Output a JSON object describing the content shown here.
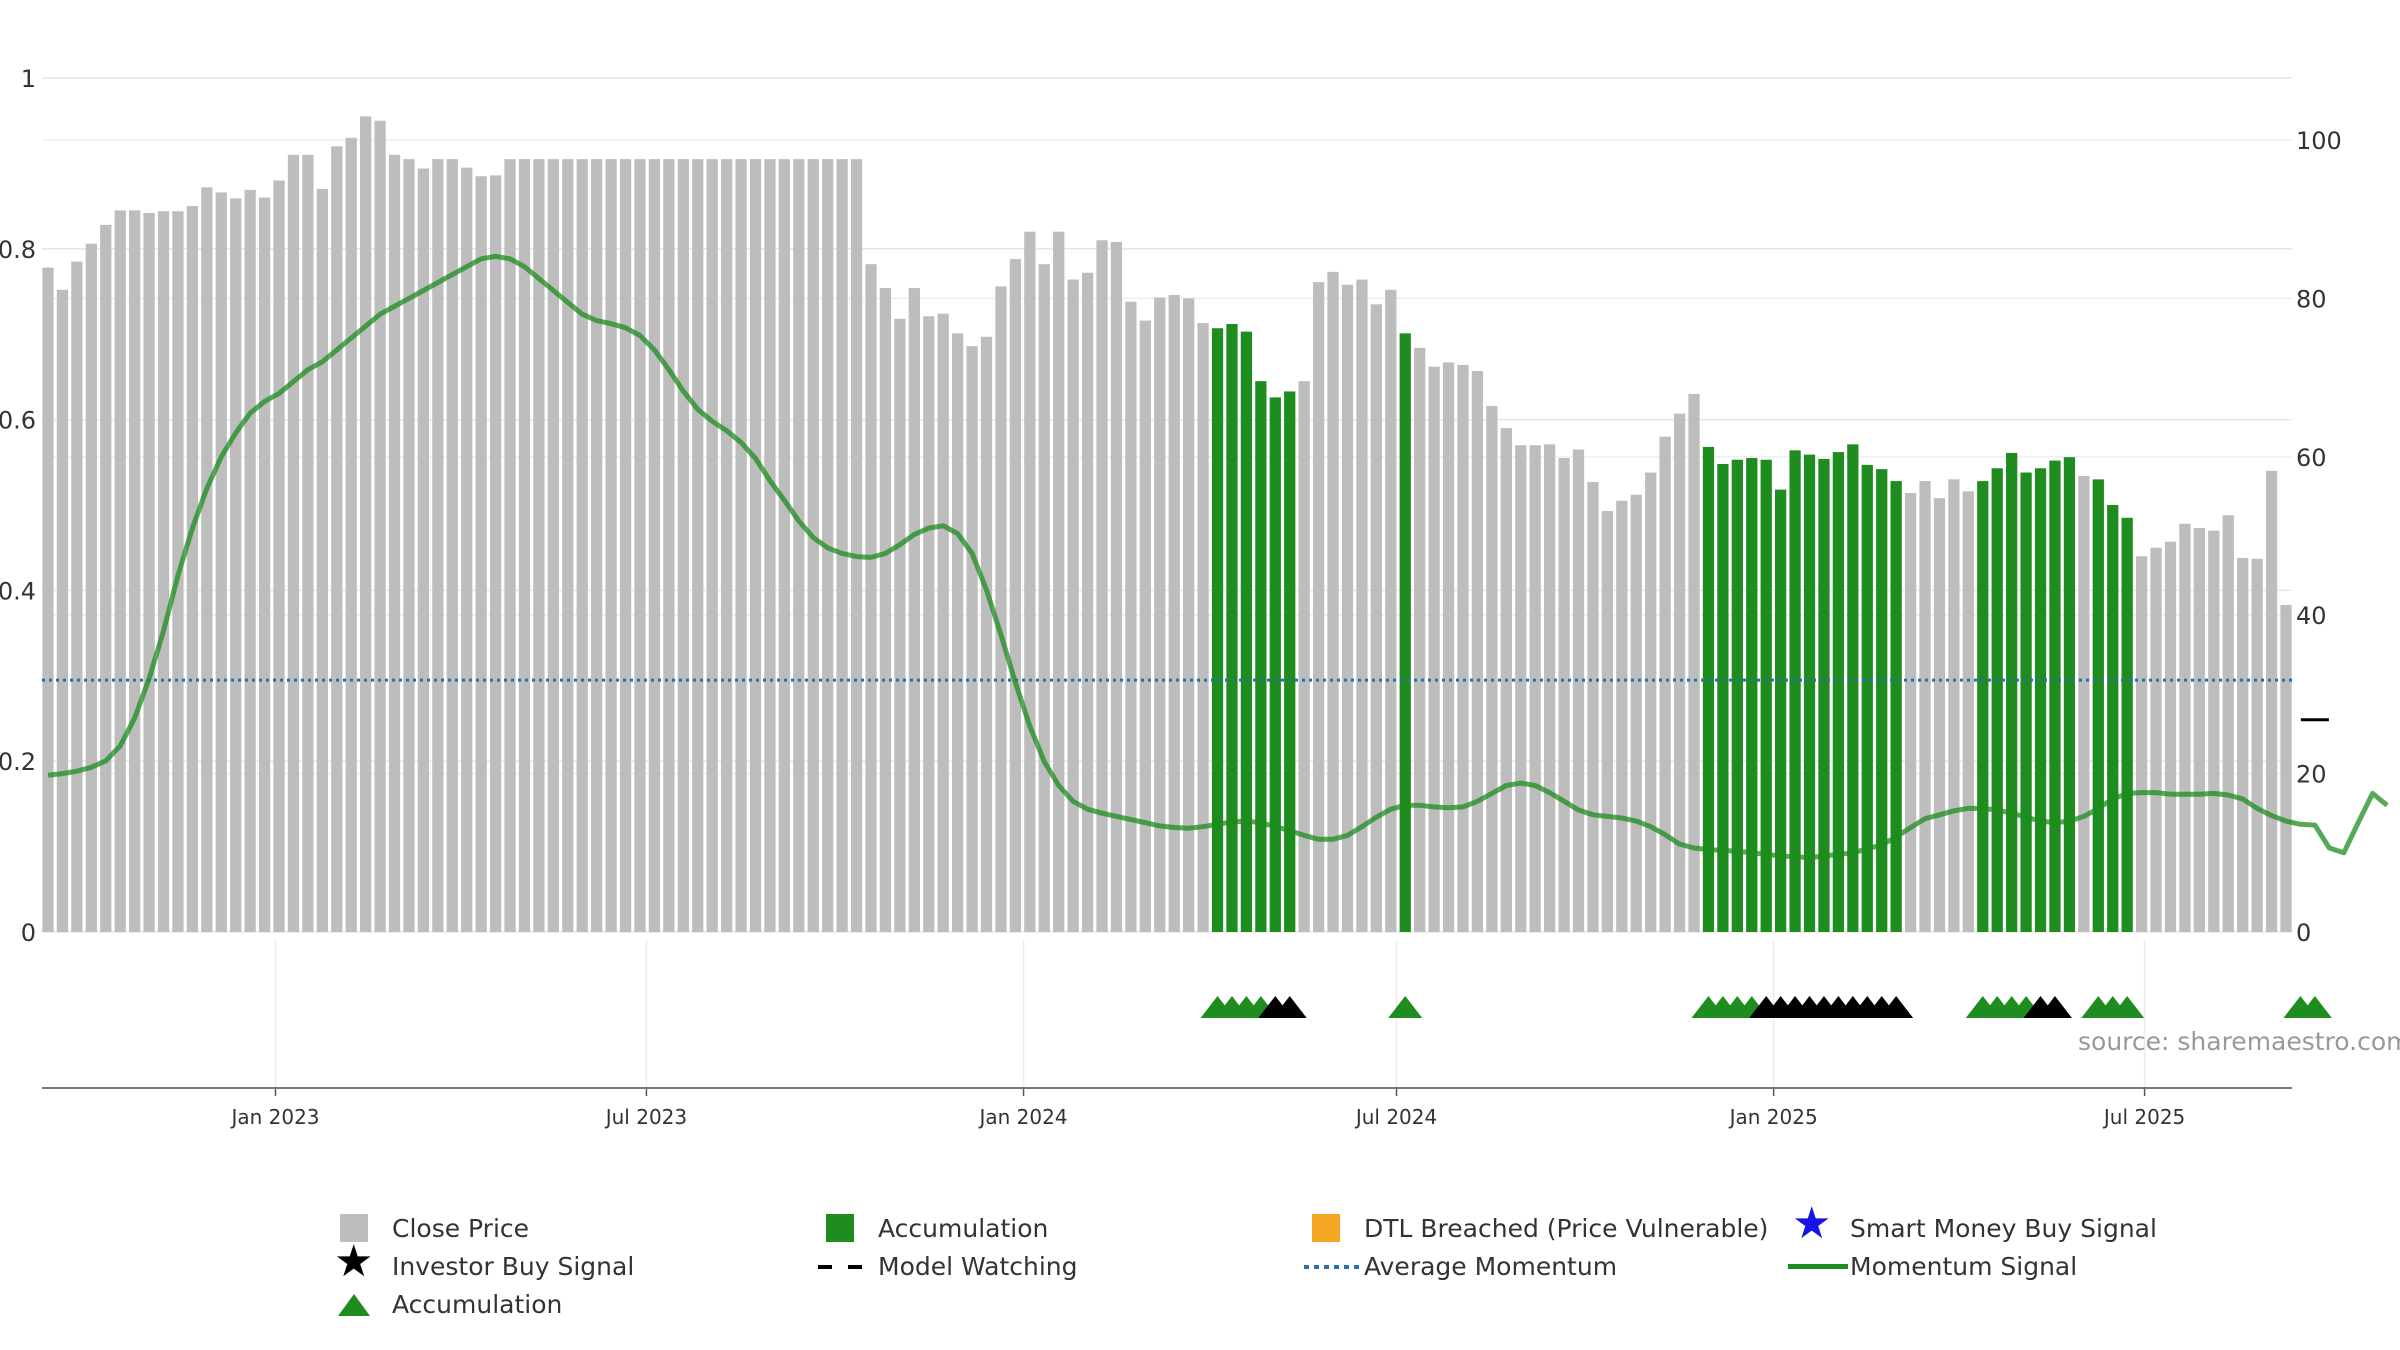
{
  "chart_data": {
    "type": "bar",
    "x_axis": {
      "ticks": [
        "Jan 2023",
        "Jul 2023",
        "Jan 2024",
        "Jul 2024",
        "Jan 2025",
        "Jul 2025"
      ],
      "range": [
        "2022-09-12",
        "2025-09-08"
      ]
    },
    "y_left": {
      "ticks": [
        "0",
        "0.2",
        "0.4",
        "0.6",
        "0.8",
        "1"
      ],
      "range": [
        0,
        1.0
      ]
    },
    "y_right": {
      "ticks": [
        "0",
        "20",
        "40",
        "60",
        "80",
        "100"
      ],
      "range": [
        0,
        100
      ]
    },
    "grid": true,
    "legend_position": "bottom",
    "source_text": "source: sharemaestro.com",
    "series": [
      {
        "name": "Close Price",
        "type": "bar",
        "color": "#bdbdbd",
        "start_date": "2022-09-12",
        "interval": "weekly",
        "values": [
          0.778,
          0.752,
          0.785,
          0.806,
          0.828,
          0.845,
          0.845,
          0.842,
          0.844,
          0.844,
          0.85,
          0.872,
          0.866,
          0.859,
          0.869,
          0.86,
          0.88,
          0.91,
          0.91,
          0.87,
          0.92,
          0.93,
          0.955,
          0.95,
          0.91,
          0.905,
          0.894,
          0.905,
          0.905,
          0.895,
          0.885,
          0.886,
          0.905,
          0.905,
          0.905,
          0.905,
          0.905,
          0.905,
          0.905,
          0.905,
          0.905,
          0.905,
          0.905,
          0.905,
          0.905,
          0.905,
          0.905,
          0.905,
          0.905,
          0.905,
          0.905,
          0.905,
          0.905,
          0.905,
          0.905,
          0.905,
          0.905,
          0.782,
          0.754,
          0.718,
          0.754,
          0.721,
          0.724,
          0.701,
          0.686,
          0.697,
          0.756,
          0.788,
          0.82,
          0.782,
          0.82,
          0.764,
          0.772,
          0.81,
          0.808,
          0.738,
          0.716,
          0.743,
          0.746,
          0.742,
          0.713,
          0.707,
          0.712,
          0.703,
          0.645,
          0.626,
          0.633,
          0.645,
          0.761,
          0.773,
          0.758,
          0.764,
          0.735,
          0.752,
          0.701,
          0.684,
          0.662,
          0.667,
          0.664,
          0.657,
          0.616,
          0.59,
          0.57,
          0.57,
          0.571,
          0.555,
          0.565,
          0.527,
          0.493,
          0.505,
          0.512,
          0.538,
          0.58,
          0.607,
          0.63,
          0.568,
          0.548,
          0.553,
          0.555,
          0.553,
          0.518,
          0.564,
          0.559,
          0.554,
          0.562,
          0.571,
          0.547,
          0.542,
          0.528,
          0.514,
          0.528,
          0.508,
          0.53,
          0.516,
          0.528,
          0.543,
          0.561,
          0.538,
          0.543,
          0.552,
          0.556,
          0.534,
          0.53,
          0.5,
          0.485,
          0.44,
          0.45,
          0.457,
          0.478,
          0.473,
          0.47,
          0.488,
          0.438,
          0.437,
          0.54,
          0.383
        ]
      },
      {
        "name": "Accumulation",
        "type": "bar",
        "color": "#1e8c1e",
        "bar_indices": [
          81,
          82,
          83,
          84,
          85,
          86,
          94,
          115,
          116,
          117,
          118,
          119,
          120,
          121,
          122,
          123,
          124,
          125,
          126,
          127,
          128,
          134,
          135,
          136,
          137,
          138,
          139,
          140,
          142,
          143,
          144,
          156,
          157
        ]
      },
      {
        "name": "Momentum Signal",
        "type": "line",
        "axis": "right",
        "color": "#1e8c1e",
        "values": [
          19.8,
          20.0,
          20.3,
          20.8,
          21.6,
          23.5,
          27.0,
          32.0,
          38.0,
          45.0,
          51.0,
          56.0,
          60.0,
          63.0,
          65.5,
          67.0,
          68.0,
          69.5,
          71.0,
          72.0,
          73.5,
          75.0,
          76.5,
          78.0,
          79.0,
          80.0,
          81.0,
          82.0,
          83.0,
          84.0,
          85.0,
          85.3,
          85.0,
          84.0,
          82.5,
          81.0,
          79.5,
          78.0,
          77.2,
          76.8,
          76.3,
          75.3,
          73.5,
          71.0,
          68.3,
          66.0,
          64.5,
          63.3,
          61.8,
          59.8,
          57.0,
          54.5,
          51.9,
          49.8,
          48.5,
          47.8,
          47.4,
          47.3,
          47.8,
          48.9,
          50.2,
          51.0,
          51.3,
          50.3,
          47.8,
          43.2,
          37.5,
          31.5,
          26.0,
          21.5,
          18.5,
          16.5,
          15.5,
          15.0,
          14.6,
          14.2,
          13.8,
          13.4,
          13.2,
          13.1,
          13.3,
          13.6,
          13.9,
          14.0,
          13.8,
          13.3,
          12.8,
          12.2,
          11.7,
          11.7,
          12.2,
          13.3,
          14.5,
          15.5,
          16.0,
          16.0,
          15.8,
          15.7,
          15.8,
          16.5,
          17.5,
          18.5,
          18.8,
          18.5,
          17.6,
          16.5,
          15.4,
          14.8,
          14.6,
          14.4,
          14.0,
          13.3,
          12.3,
          11.1,
          10.6,
          10.4,
          10.3,
          10.2,
          10.0,
          9.8,
          9.6,
          9.5,
          9.4,
          9.6,
          9.8,
          10.0,
          10.5,
          11.0,
          12.0,
          13.2,
          14.3,
          14.8,
          15.3,
          15.6,
          15.6,
          15.4,
          15.0,
          14.5,
          14.0,
          13.8,
          14.0,
          14.6,
          15.6,
          16.8,
          17.5,
          17.6,
          17.6,
          17.4,
          17.4,
          17.4,
          17.5,
          17.3,
          16.8,
          15.6,
          14.7,
          14.0,
          13.6,
          13.5,
          10.6,
          10.0,
          13.8,
          17.5,
          16.0
        ]
      },
      {
        "name": "Average Momentum",
        "type": "hline",
        "axis": "right",
        "color": "#2a6fa8",
        "value": 31.8
      },
      {
        "name": "Model Watching",
        "type": "marker",
        "axis": "right",
        "color": "#000000",
        "points": [
          {
            "index": 157,
            "value": 26.8
          }
        ]
      },
      {
        "name": "Accumulation",
        "type": "marker-triangle",
        "color": "#1e8c1e",
        "indices": [
          81,
          82,
          83,
          84,
          94,
          115,
          116,
          117,
          118,
          134,
          135,
          136,
          137,
          142,
          143,
          144,
          156,
          157
        ]
      },
      {
        "name": "Investor Buy Signal",
        "type": "marker-triangle",
        "color": "#000000",
        "indices": [
          85,
          86,
          119,
          120,
          121,
          122,
          123,
          124,
          125,
          126,
          127,
          128,
          138,
          139
        ]
      }
    ]
  },
  "legend": {
    "items": [
      {
        "label": "Close Price",
        "symbol": "square",
        "color": "#bdbdbd"
      },
      {
        "label": "Accumulation",
        "symbol": "square",
        "color": "#1e8c1e"
      },
      {
        "label": "DTL Breached (Price Vulnerable)",
        "symbol": "square",
        "color": "#f5a623"
      },
      {
        "label": "Smart Money Buy Signal",
        "symbol": "star",
        "color": "#1515e6"
      },
      {
        "label": "Investor Buy Signal",
        "symbol": "star",
        "color": "#000000"
      },
      {
        "label": "Model Watching",
        "symbol": "dash",
        "color": "#000000"
      },
      {
        "label": "Average Momentum",
        "symbol": "dotted-line",
        "color": "#2a6fa8"
      },
      {
        "label": "Momentum Signal",
        "symbol": "line",
        "color": "#1e8c1e"
      },
      {
        "label": "Accumulation",
        "symbol": "triangle",
        "color": "#1e8c1e"
      }
    ]
  }
}
